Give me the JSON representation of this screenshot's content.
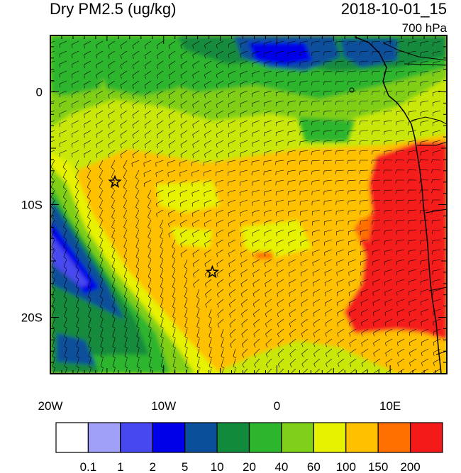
{
  "header": {
    "title": "Dry PM2.5 (ug/kg)",
    "datetime": "2018-10-01_15",
    "level": "700 hPa"
  },
  "map": {
    "lon_range": [
      -20,
      15
    ],
    "lat_range": [
      -25,
      5
    ],
    "lon_ticks": [
      {
        "value": -20,
        "label": "20W"
      },
      {
        "value": -10,
        "label": "10W"
      },
      {
        "value": 0,
        "label": "0"
      },
      {
        "value": 10,
        "label": "10E"
      }
    ],
    "lat_ticks": [
      {
        "value": 0,
        "label": "0"
      },
      {
        "value": -10,
        "label": "10S"
      },
      {
        "value": -20,
        "label": "20S"
      }
    ],
    "markers": [
      {
        "name": "star-marker",
        "lon": -14.3,
        "lat": -8.0
      },
      {
        "name": "star-marker",
        "lon": -5.7,
        "lat": -16.0
      }
    ]
  },
  "colorbar": {
    "colors": [
      "#ffffff",
      "#a0a0f8",
      "#4848f0",
      "#0000e8",
      "#0a4f9a",
      "#128a3c",
      "#2eb52e",
      "#80cf18",
      "#e6f200",
      "#ffc000",
      "#ff7000",
      "#f51a1a"
    ],
    "labels": [
      "0.1",
      "1",
      "2",
      "5",
      "10",
      "20",
      "40",
      "60",
      "100",
      "150",
      "200"
    ]
  }
}
